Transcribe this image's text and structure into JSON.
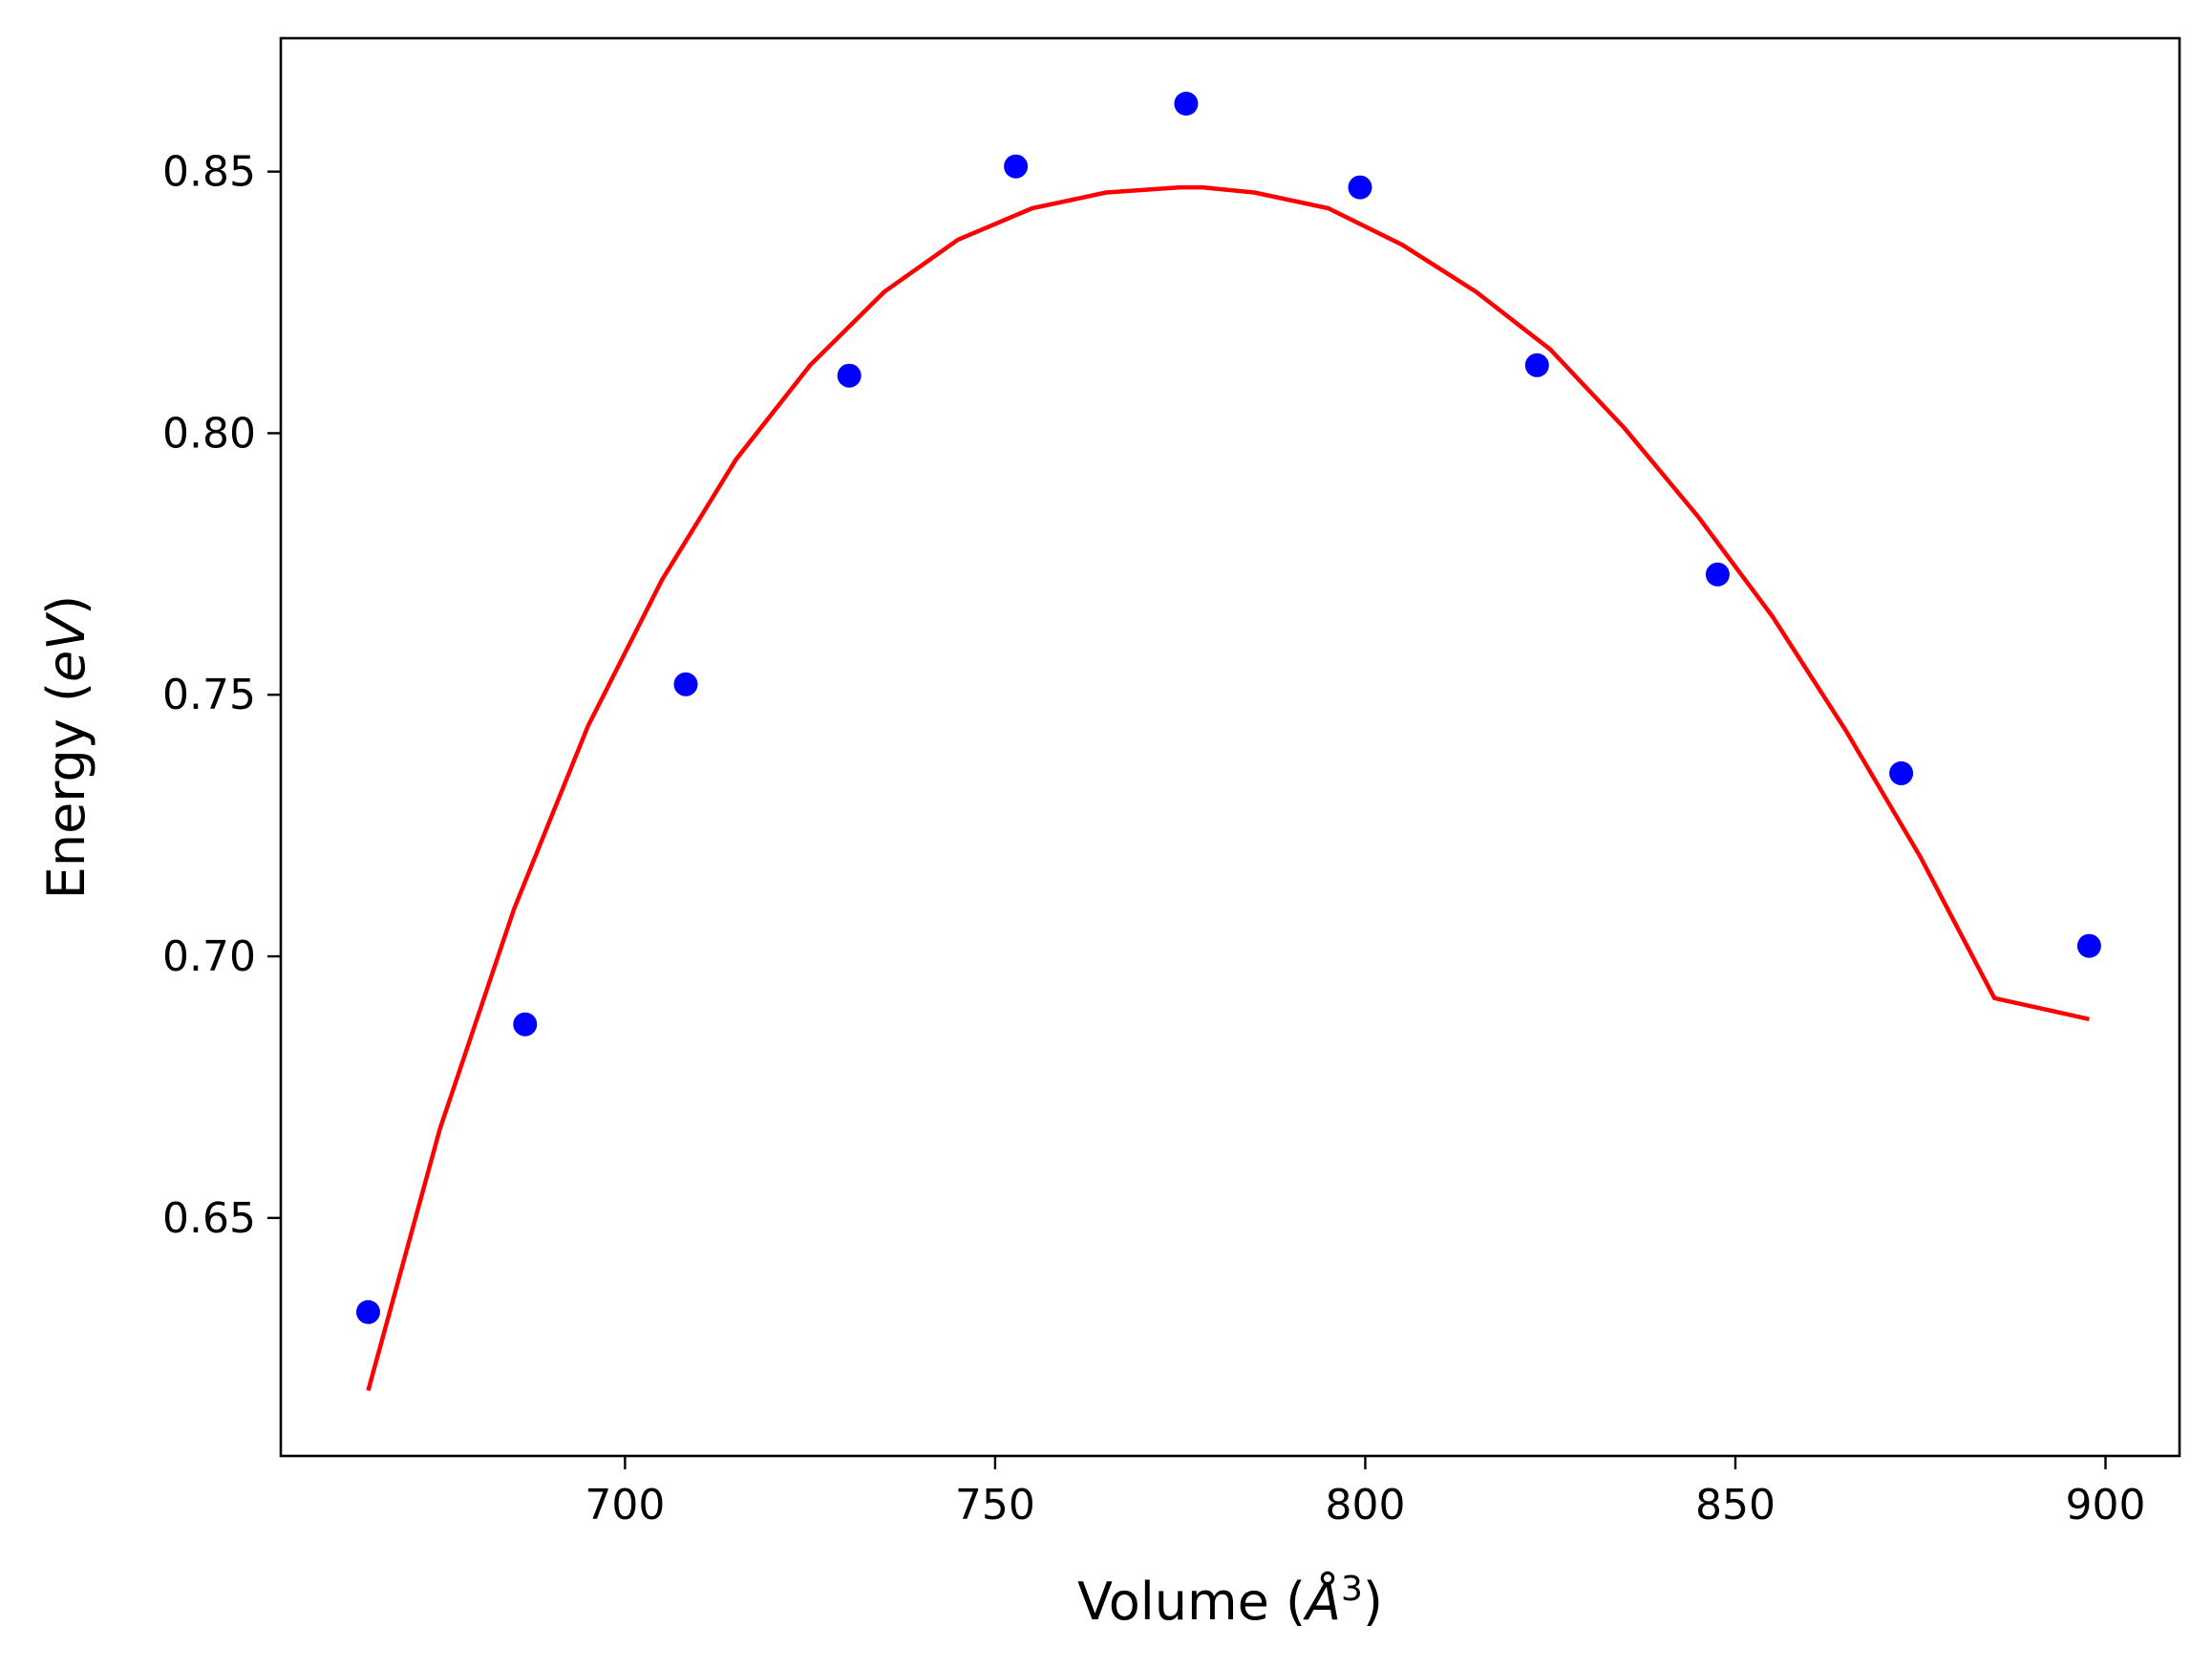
{
  "chart_data": {
    "type": "scatter",
    "title": "",
    "xlabel": "Volume (",
    "xlabel_symbol": "Å",
    "xlabel_exp": "3",
    "xlabel_close": ")",
    "ylabel": "Energy (",
    "ylabel_unit": "eV",
    "ylabel_close": ")",
    "xlim": [
      653.5,
      910
    ],
    "ylim": [
      0.6045,
      0.8755
    ],
    "xticks": [
      700,
      750,
      800,
      850,
      900
    ],
    "xtick_labels": [
      "700",
      "750",
      "800",
      "850",
      "900"
    ],
    "yticks": [
      0.65,
      0.7,
      0.75,
      0.8,
      0.85
    ],
    "ytick_labels": [
      "0.65",
      "0.70",
      "0.75",
      "0.80",
      "0.85"
    ],
    "grid": false,
    "series": [
      {
        "kind": "points",
        "color": "#0000ff",
        "x": [
          665.3,
          686.5,
          708.2,
          730.3,
          752.8,
          775.8,
          799.3,
          823.2,
          847.6,
          872.4,
          897.8
        ],
        "y": [
          0.632,
          0.687,
          0.752,
          0.811,
          0.851,
          0.863,
          0.847,
          0.813,
          0.773,
          0.735,
          0.702
        ]
      },
      {
        "kind": "fit-curve",
        "color": "#ff0000",
        "x": [
          665.3,
          675,
          685,
          695,
          705,
          715,
          725,
          735,
          745,
          755,
          765,
          775,
          778,
          785,
          795,
          805,
          815,
          825,
          835,
          845,
          855,
          865,
          875,
          885,
          897.8
        ],
        "y": [
          0.617,
          0.667,
          0.709,
          0.744,
          0.772,
          0.795,
          0.813,
          0.827,
          0.837,
          0.843,
          0.846,
          0.847,
          0.847,
          0.846,
          0.843,
          0.836,
          0.827,
          0.816,
          0.801,
          0.784,
          0.765,
          0.743,
          0.719,
          0.692,
          0.688
        ]
      }
    ]
  }
}
